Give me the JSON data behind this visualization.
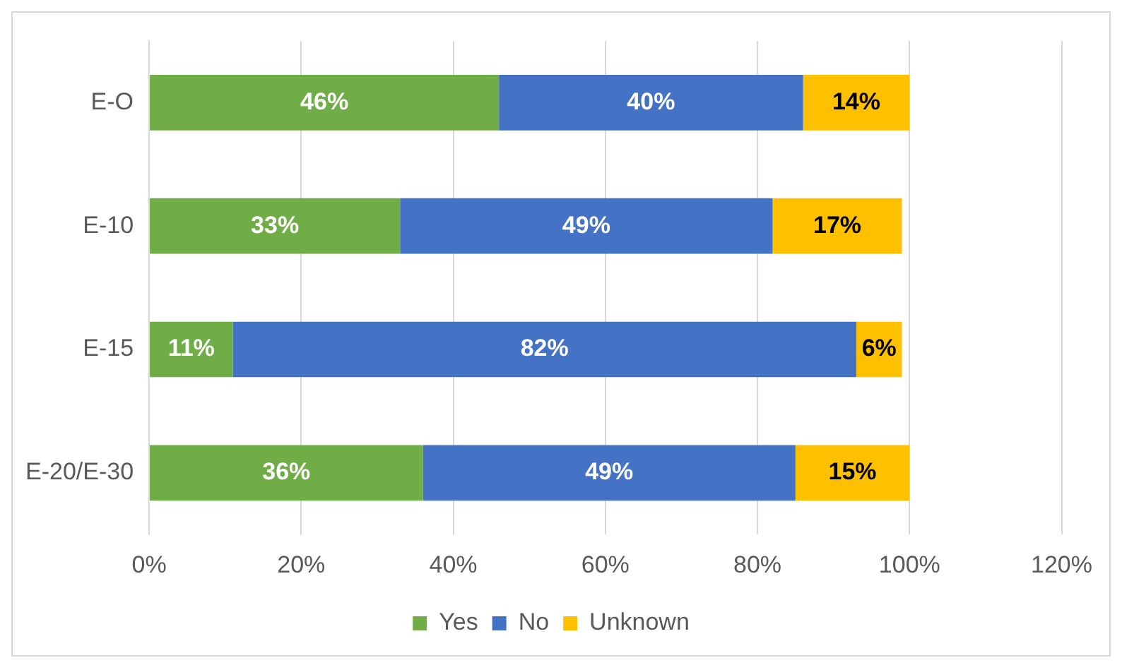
{
  "chart_data": {
    "type": "bar",
    "orientation": "horizontal",
    "stacked": true,
    "categories": [
      "E-O",
      "E-10",
      "E-15",
      "E-20/E-30"
    ],
    "series": [
      {
        "name": "Yes",
        "color": "#70ad47",
        "values": [
          46,
          33,
          11,
          36
        ],
        "value_labels": [
          "46%",
          "33%",
          "11%",
          "36%"
        ]
      },
      {
        "name": "No",
        "color": "#4472c4",
        "values": [
          40,
          49,
          82,
          49
        ],
        "value_labels": [
          "40%",
          "49%",
          "82%",
          "49%"
        ]
      },
      {
        "name": "Unknown",
        "color": "#ffc000",
        "values": [
          14,
          17,
          6,
          15
        ],
        "value_labels": [
          "14%",
          "17%",
          "6%",
          "15%"
        ]
      }
    ],
    "xlim": [
      0,
      120
    ],
    "xticks": [
      {
        "value": 0,
        "label": "0%"
      },
      {
        "value": 20,
        "label": "20%"
      },
      {
        "value": 40,
        "label": "40%"
      },
      {
        "value": 60,
        "label": "60%"
      },
      {
        "value": 80,
        "label": "80%"
      },
      {
        "value": 100,
        "label": "100%"
      },
      {
        "value": 120,
        "label": "120%"
      }
    ],
    "grid": "x",
    "legend": "bottom"
  }
}
